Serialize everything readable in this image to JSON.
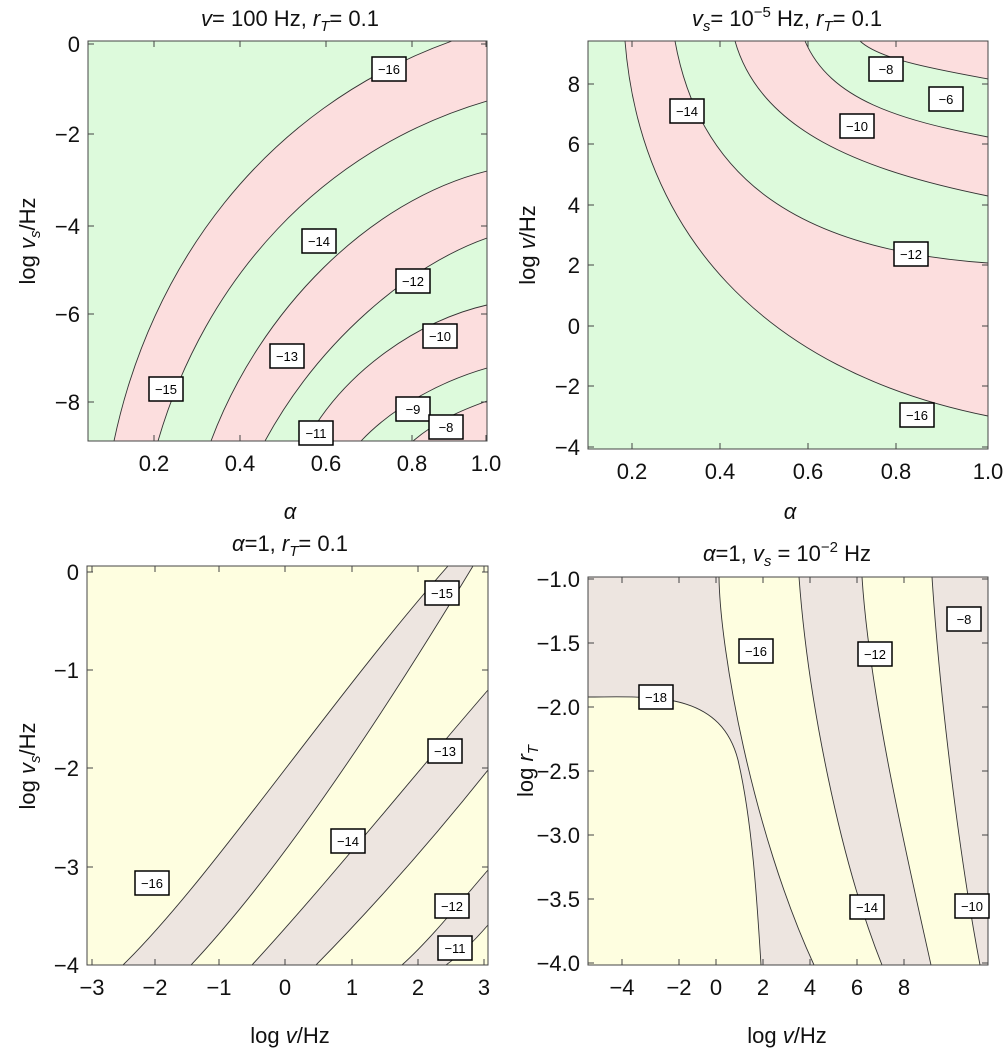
{
  "chart_data": [
    {
      "type": "contour",
      "id": "p1",
      "title_parts": [
        [
          "v",
          "it"
        ],
        [
          "= 100 Hz, ",
          ""
        ],
        [
          "r",
          "it"
        ],
        [
          "T",
          "sub-it"
        ],
        [
          "= 0.1",
          ""
        ]
      ],
      "xlabel_parts": [
        [
          "α",
          "it"
        ]
      ],
      "ylabel_parts": [
        [
          "log ",
          ""
        ],
        [
          "v",
          "it"
        ],
        [
          "s",
          "sub-it"
        ],
        [
          "/Hz",
          ""
        ]
      ],
      "xlim": [
        0.1,
        1.0
      ],
      "ylim": [
        -9,
        0
      ],
      "xticks": [
        "0.2",
        "0.4",
        "0.6",
        "0.8",
        "1.0"
      ],
      "yticks": [
        "0",
        "−2",
        "−4",
        "−6",
        "−8"
      ],
      "band_colors": [
        "#ddfadc",
        "#fcdede"
      ],
      "band_order": "green-outer",
      "contour_labels": [
        {
          "text": "−16"
        },
        {
          "text": "−15"
        },
        {
          "text": "−14"
        },
        {
          "text": "−13"
        },
        {
          "text": "−12"
        },
        {
          "text": "−11"
        },
        {
          "text": "−10"
        },
        {
          "text": "−9"
        },
        {
          "text": "−8"
        }
      ]
    },
    {
      "type": "contour",
      "id": "p2",
      "title_parts": [
        [
          "v",
          "it"
        ],
        [
          "s",
          "sub-it"
        ],
        [
          "= 10",
          ""
        ],
        [
          "−5",
          "sup"
        ],
        [
          " Hz, ",
          ""
        ],
        [
          "r",
          "it"
        ],
        [
          "T",
          "sub-it"
        ],
        [
          "= 0.1",
          ""
        ]
      ],
      "xlabel_parts": [
        [
          "α",
          "it"
        ]
      ],
      "ylabel_parts": [
        [
          "log ",
          ""
        ],
        [
          "v",
          "it"
        ],
        [
          "/Hz",
          ""
        ]
      ],
      "xlim": [
        0.1,
        1.0
      ],
      "ylim": [
        -4,
        9
      ],
      "xticks": [
        "0.2",
        "0.4",
        "0.6",
        "0.8",
        "1.0"
      ],
      "yticks": [
        "8",
        "6",
        "4",
        "2",
        "0",
        "−2",
        "−4"
      ],
      "band_colors": [
        "#ddfadc",
        "#fcdede"
      ],
      "contour_labels": [
        {
          "text": "−14"
        },
        {
          "text": "−10"
        },
        {
          "text": "−8"
        },
        {
          "text": "−6"
        },
        {
          "text": "−12"
        },
        {
          "text": "−16"
        }
      ]
    },
    {
      "type": "contour",
      "id": "p3",
      "title_parts": [
        [
          "α",
          "it"
        ],
        [
          "=1, ",
          ""
        ],
        [
          "r",
          "it"
        ],
        [
          "T",
          "sub-it"
        ],
        [
          "= 0.1",
          ""
        ]
      ],
      "xlabel_parts": [
        [
          "log ",
          ""
        ],
        [
          "v",
          "it"
        ],
        [
          "/Hz",
          ""
        ]
      ],
      "ylabel_parts": [
        [
          "log ",
          ""
        ],
        [
          "v",
          "it"
        ],
        [
          "s",
          "sub-it"
        ],
        [
          "/Hz",
          ""
        ]
      ],
      "xlim": [
        -3,
        3
      ],
      "ylim": [
        -4,
        0
      ],
      "xticks": [
        "−3",
        "−2",
        "−1",
        "0",
        "1",
        "2",
        "3"
      ],
      "yticks": [
        "0",
        "−1",
        "−2",
        "−3",
        "−4"
      ],
      "band_colors": [
        "#fefee0",
        "#ede5e0"
      ],
      "contour_labels": [
        {
          "text": "−15"
        },
        {
          "text": "−13"
        },
        {
          "text": "−14"
        },
        {
          "text": "−16"
        },
        {
          "text": "−12"
        },
        {
          "text": "−11"
        }
      ]
    },
    {
      "type": "contour",
      "id": "p4",
      "title_parts": [
        [
          "α",
          "it"
        ],
        [
          "=1,  ",
          ""
        ],
        [
          "v",
          "it"
        ],
        [
          "s",
          "sub-it"
        ],
        [
          " = 10",
          ""
        ],
        [
          "−2",
          "sup"
        ],
        [
          " Hz",
          ""
        ]
      ],
      "xlabel_parts": [
        [
          "log ",
          ""
        ],
        [
          "v",
          "it"
        ],
        [
          "/Hz",
          ""
        ]
      ],
      "ylabel_parts": [
        [
          "log ",
          ""
        ],
        [
          "r",
          "it"
        ],
        [
          "T",
          "sub-it"
        ]
      ],
      "xlim": [
        -5.3,
        9
      ],
      "ylim": [
        -4,
        -1
      ],
      "xticks": [
        "−4",
        "−2",
        "0",
        "2",
        "4",
        "6",
        "8"
      ],
      "yticks": [
        "−1.0",
        "−1.5",
        "−2.0",
        "−2.5",
        "−3.0",
        "−3.5",
        "−4.0"
      ],
      "band_colors": [
        "#fefee0",
        "#ede5e0"
      ],
      "contour_labels": [
        {
          "text": "−16"
        },
        {
          "text": "−12"
        },
        {
          "text": "−8"
        },
        {
          "text": "−18"
        },
        {
          "text": "−14"
        },
        {
          "text": "−10"
        }
      ]
    }
  ]
}
